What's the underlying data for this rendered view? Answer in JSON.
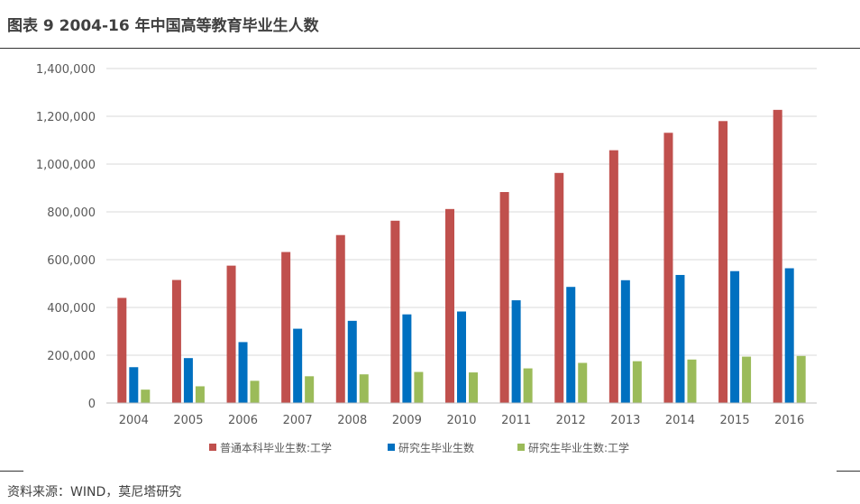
{
  "title": "图表 9 2004-16 年中国高等教育毕业生人数",
  "source": "资料来源：WIND，莫尼塔研究",
  "chart_data": {
    "type": "bar",
    "title": "",
    "xlabel": "",
    "ylabel": "",
    "categories": [
      "2004",
      "2005",
      "2006",
      "2007",
      "2008",
      "2009",
      "2010",
      "2011",
      "2012",
      "2013",
      "2014",
      "2015",
      "2016"
    ],
    "ylim": [
      0,
      1400000
    ],
    "yticks": [
      0,
      200000,
      400000,
      600000,
      800000,
      1000000,
      1200000,
      1400000
    ],
    "ytick_labels": [
      "0",
      "200,000",
      "400,000",
      "600,000",
      "800,000",
      "1,000,000",
      "1,200,000",
      "1,400,000"
    ],
    "grid": true,
    "legend_position": "bottom",
    "series": [
      {
        "name": "普通本科毕业生数:工学",
        "color": "#c0504d",
        "values": [
          440000,
          515000,
          575000,
          632000,
          703000,
          763000,
          812000,
          883000,
          963000,
          1058000,
          1131000,
          1180000,
          1227000
        ]
      },
      {
        "name": "研究生毕业生数",
        "color": "#0070c0",
        "values": [
          150000,
          188000,
          255000,
          311000,
          344000,
          371000,
          383000,
          430000,
          486000,
          514000,
          536000,
          552000,
          564000
        ]
      },
      {
        "name": "研究生毕业生数:工学",
        "color": "#9bbb59",
        "values": [
          56000,
          70000,
          93000,
          112000,
          120000,
          130000,
          128000,
          145000,
          168000,
          175000,
          182000,
          194000,
          197000
        ]
      }
    ]
  }
}
